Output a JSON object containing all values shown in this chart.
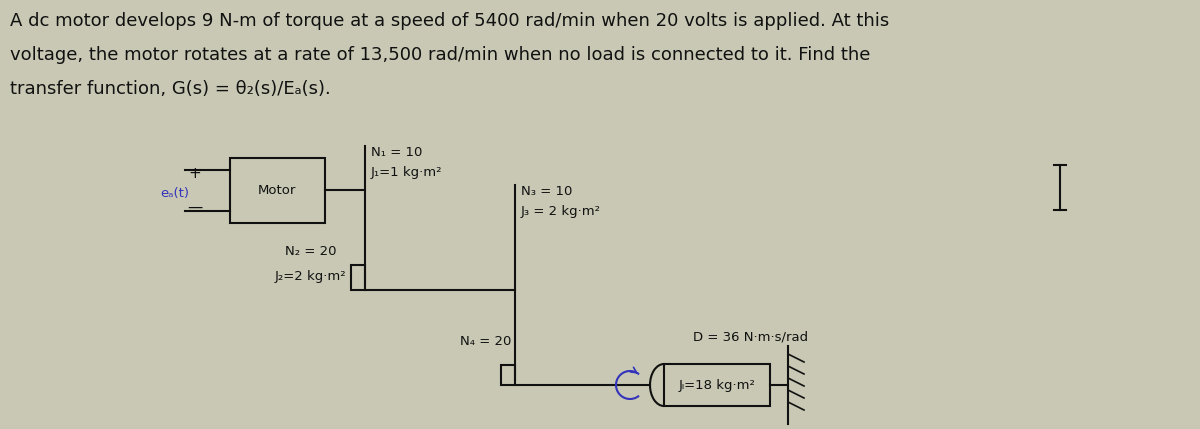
{
  "bg_color": "#c8c8b4",
  "text_color": "#000000",
  "title_lines": [
    "A dc motor develops 9 N-m of torque at a speed of 5400 rad/min when 20 volts is applied. At this",
    "voltage, the motor rotates at a rate of 13,500 rad/min when no load is connected to it. Find the",
    "transfer function, G(s) = θ₂(s)/Eₐ(s)."
  ],
  "diagram": {
    "ea_label": "eₐ(t)",
    "motor_label": "Motor",
    "N1": "N₁ = 10",
    "J1": "J₁=1 kg·m²",
    "N2": "N₂ = 20",
    "N3": "N₃ = 10",
    "J3": "J₃ = 2 kg·m²",
    "J2": "J₂=2 kg·m²",
    "N4": "N₄ = 20",
    "JL": "Jₗ=18 kg·m²",
    "D": "D = 36 N·m·s/rad"
  }
}
